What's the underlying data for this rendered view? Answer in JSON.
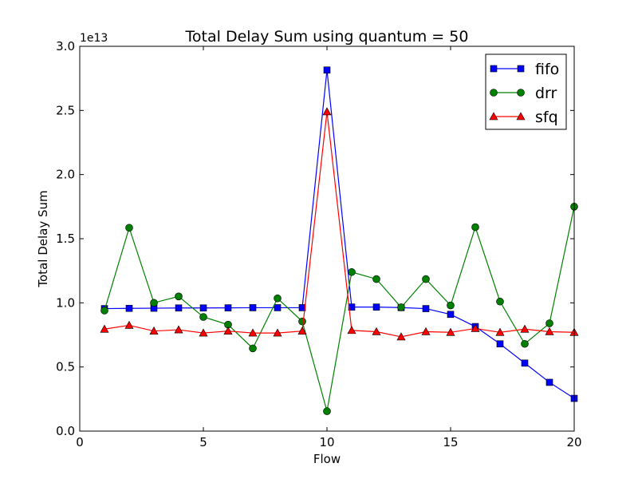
{
  "chart_data": {
    "type": "line",
    "title": "Total Delay Sum using quantum = 50",
    "xlabel": "Flow",
    "ylabel": "Total Delay Sum",
    "y_multiplier_label": "1e13",
    "xlim": [
      0,
      20
    ],
    "ylim": [
      0.0,
      3.0
    ],
    "x_ticks": [
      0,
      5,
      10,
      15,
      20
    ],
    "x_tick_labels": [
      "0",
      "5",
      "10",
      "15",
      "20"
    ],
    "y_ticks": [
      0.0,
      0.5,
      1.0,
      1.5,
      2.0,
      2.5,
      3.0
    ],
    "y_tick_labels": [
      "0.0",
      "0.5",
      "1.0",
      "1.5",
      "2.0",
      "2.5",
      "3.0"
    ],
    "grid": false,
    "legend_position": "top-right",
    "x": [
      1,
      2,
      3,
      4,
      5,
      6,
      7,
      8,
      9,
      10,
      11,
      12,
      13,
      14,
      15,
      16,
      17,
      18,
      19,
      20
    ],
    "series": [
      {
        "name": "fifo",
        "color": "#0000ff",
        "marker": "square",
        "values": [
          0.955,
          0.957,
          0.958,
          0.96,
          0.96,
          0.961,
          0.962,
          0.962,
          0.962,
          2.815,
          0.967,
          0.967,
          0.963,
          0.955,
          0.91,
          0.815,
          0.68,
          0.53,
          0.38,
          0.255
        ]
      },
      {
        "name": "drr",
        "color": "#008000",
        "marker": "circle",
        "values": [
          0.94,
          1.585,
          1.0,
          1.05,
          0.89,
          0.83,
          0.645,
          1.035,
          0.855,
          0.155,
          1.24,
          1.185,
          0.965,
          1.185,
          0.98,
          1.59,
          1.01,
          0.68,
          0.84,
          1.75
        ]
      },
      {
        "name": "sfq",
        "color": "#ff0000",
        "marker": "triangle",
        "values": [
          0.795,
          0.825,
          0.78,
          0.79,
          0.765,
          0.78,
          0.765,
          0.765,
          0.78,
          2.49,
          0.785,
          0.775,
          0.735,
          0.775,
          0.77,
          0.8,
          0.77,
          0.795,
          0.775,
          0.77
        ]
      }
    ]
  }
}
